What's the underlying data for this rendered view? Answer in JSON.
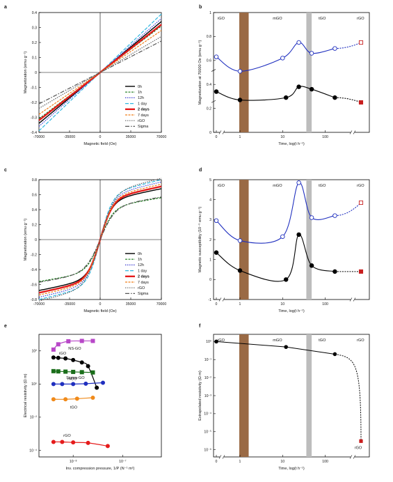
{
  "chart_data": [
    {
      "panel": "a",
      "type": "line",
      "xlabel": "Magnetic field (Oe)",
      "ylabel": "Magnetization (emu g⁻¹)",
      "xlim": [
        -70000,
        70000
      ],
      "ylim": [
        -0.4,
        0.4
      ],
      "xticks": [
        -70000,
        -35000,
        0,
        35000,
        70000
      ],
      "xtick_labels": [
        "-70000",
        "-35000",
        "0",
        "35000",
        "70000"
      ],
      "yticks": [
        -0.4,
        -0.3,
        -0.2,
        -0.1,
        0,
        0.1,
        0.2,
        0.3,
        0.4
      ],
      "ytick_labels": [
        "-0.4",
        "-0.3",
        "-0.2",
        "-0.1",
        "0",
        "0.1",
        "0.2",
        "0.3",
        "0.4"
      ],
      "legend_position": "bottom-right",
      "series": [
        {
          "name": "0h",
          "color": "#000000",
          "dash": "",
          "width": 1.4,
          "kind": "linear",
          "m": 0.34
        },
        {
          "name": "1h",
          "color": "#1a7a1a",
          "dash": "3,1.5",
          "width": 1.2,
          "kind": "linear",
          "m": 0.31
        },
        {
          "name": "12h",
          "color": "#3a3ad0",
          "dash": "1.5,1.5",
          "width": 1.2,
          "kind": "linear",
          "m": 0.36
        },
        {
          "name": "1 day",
          "color": "#2fb7e0",
          "dash": "5,2",
          "width": 1.2,
          "kind": "linear",
          "m": 0.39
        },
        {
          "name": "2 days",
          "color": "#e51b1b",
          "dash": "",
          "width": 2.4,
          "kind": "linear",
          "m": 0.32
        },
        {
          "name": "7 days",
          "color": "#f07f1a",
          "dash": "3,1.5",
          "width": 1.2,
          "kind": "linear",
          "m": 0.28
        },
        {
          "name": "rGO",
          "color": "#666666",
          "dash": "1.5,1.5",
          "width": 1.2,
          "kind": "linear",
          "m": 0.24
        },
        {
          "name": "Sigma",
          "color": "#555555",
          "dash": "6,2,1.5,2",
          "width": 1.2,
          "kind": "linear",
          "m": 0.21
        }
      ]
    },
    {
      "panel": "b",
      "type": "line",
      "xlabel": "Time, log(t h⁻¹)",
      "ylabel": "Magnetization at 70000 Oe (emu g⁻¹)",
      "ylim": [
        0,
        1
      ],
      "yticks": [
        0,
        0.2,
        0.4,
        0.6,
        0.8,
        1
      ],
      "ytick_labels": [
        "0",
        "0.2",
        "0.4",
        "0.6",
        "0.8",
        "1"
      ],
      "xtick_labels": [
        "0",
        "1",
        "10",
        "100"
      ],
      "region_labels": [
        "iGO",
        "mGO",
        "tGO",
        "rGO"
      ],
      "series": [
        {
          "name": "open",
          "color": "#1f2fbf",
          "points": [
            [
              0,
              0.63
            ],
            [
              1,
              0.51
            ],
            [
              10,
              0.62
            ],
            [
              24,
              0.75
            ],
            [
              48,
              0.66
            ],
            [
              168,
              0.7
            ],
            [
              2000,
              0.75
            ]
          ],
          "fill": "#ffffff"
        },
        {
          "name": "filled",
          "color": "#000000",
          "points": [
            [
              0,
              0.34
            ],
            [
              1,
              0.27
            ],
            [
              12,
              0.29
            ],
            [
              24,
              0.38
            ],
            [
              48,
              0.36
            ],
            [
              168,
              0.29
            ],
            [
              2000,
              0.25
            ]
          ],
          "fill": "#000000"
        }
      ]
    },
    {
      "panel": "c",
      "type": "line",
      "xlabel": "Magnetic field (Oe)",
      "ylabel": "Magnetization (emu g⁻¹)",
      "xlim": [
        -70000,
        70000
      ],
      "ylim": [
        -0.8,
        0.8
      ],
      "xticks": [
        -70000,
        -35000,
        0,
        35000,
        70000
      ],
      "xtick_labels": [
        "-70000",
        "-35000",
        "0",
        "35000",
        "70000"
      ],
      "yticks": [
        -0.8,
        -0.6,
        -0.4,
        -0.2,
        0,
        0.2,
        0.4,
        0.6,
        0.8
      ],
      "ytick_labels": [
        "-0.8",
        "-0.6",
        "-0.4",
        "-0.2",
        "0",
        "0.2",
        "0.4",
        "0.6",
        "0.8"
      ],
      "legend_position": "bottom-right",
      "series": [
        {
          "name": "0h",
          "color": "#000000",
          "dash": "",
          "width": 1.4,
          "kind": "sat",
          "Ms": 0.68,
          "H0": 14000
        },
        {
          "name": "1h",
          "color": "#1a7a1a",
          "dash": "3,1.5",
          "width": 1.2,
          "kind": "sat",
          "Ms": 0.56,
          "H0": 15000
        },
        {
          "name": "12h",
          "color": "#3a3ad0",
          "dash": "1.5,1.5",
          "width": 1.2,
          "kind": "sat",
          "Ms": 0.77,
          "H0": 15000
        },
        {
          "name": "1 day",
          "color": "#2fb7e0",
          "dash": "5,2",
          "width": 1.2,
          "kind": "sat",
          "Ms": 0.8,
          "H0": 14000
        },
        {
          "name": "2 days",
          "color": "#e51b1b",
          "dash": "",
          "width": 2.4,
          "kind": "sat",
          "Ms": 0.71,
          "H0": 14500
        },
        {
          "name": "7 days",
          "color": "#f07f1a",
          "dash": "3,1.5",
          "width": 1.2,
          "kind": "sat",
          "Ms": 0.74,
          "H0": 15000
        },
        {
          "name": "rGO",
          "color": "#666666",
          "dash": "1.5,1.5",
          "width": 1.2,
          "kind": "sat",
          "Ms": 0.82,
          "H0": 16000
        },
        {
          "name": "Sigma",
          "color": "#555555",
          "dash": "6,2,1.5,2",
          "width": 1.2,
          "kind": "sat",
          "Ms": 0.57,
          "H0": 17000
        }
      ]
    },
    {
      "panel": "d",
      "type": "line",
      "xlabel": "Time, log(t h⁻¹)",
      "ylabel": "Magnetic susceptibility (10⁻⁶ emu g⁻¹)",
      "ylim": [
        -1,
        5
      ],
      "yticks": [
        -1,
        0,
        1,
        2,
        3,
        4,
        5
      ],
      "ytick_labels": [
        "-1",
        "0",
        "1",
        "2",
        "3",
        "4",
        "5"
      ],
      "xtick_labels": [
        "0",
        "1",
        "10",
        "100"
      ],
      "region_labels": [
        "iGO",
        "mGO",
        "tGO",
        "rGO"
      ],
      "series": [
        {
          "name": "open",
          "color": "#1f2fbf",
          "points": [
            [
              0,
              2.95
            ],
            [
              1,
              1.95
            ],
            [
              10,
              2.15
            ],
            [
              24,
              4.85
            ],
            [
              48,
              3.1
            ],
            [
              168,
              3.2
            ],
            [
              2000,
              3.85
            ]
          ],
          "fill": "#ffffff"
        },
        {
          "name": "filled",
          "color": "#000000",
          "points": [
            [
              0,
              1.35
            ],
            [
              1,
              0.45
            ],
            [
              12,
              0.0
            ],
            [
              24,
              2.25
            ],
            [
              48,
              0.7
            ],
            [
              168,
              0.4
            ],
            [
              2000,
              0.4
            ]
          ],
          "fill": "#000000"
        }
      ]
    },
    {
      "panel": "e",
      "type": "line",
      "xlabel": "Inv. compression pressure, 1/P (N⁻¹ m²)",
      "ylabel": "Electrical resistivity (Ω m)",
      "yscale": "log",
      "ytick_labels": [
        "10⁻⁴",
        "10⁻²",
        "10⁰",
        "10²"
      ],
      "xtick_labels": [
        "10⁻⁸",
        "10⁻⁷"
      ],
      "series": [
        {
          "name": "NS-GO",
          "color": "#b848c8",
          "marker": "square",
          "points": [
            [
              0.4,
              120
            ],
            [
              0.5,
              250
            ],
            [
              0.8,
              380
            ],
            [
              1.5,
              400
            ],
            [
              2.5,
              400
            ]
          ]
        },
        {
          "name": "iGO",
          "color": "#000000",
          "marker": "circle",
          "points": [
            [
              0.4,
              40
            ],
            [
              0.5,
              38
            ],
            [
              0.7,
              35
            ],
            [
              1.0,
              28
            ],
            [
              1.5,
              20
            ],
            [
              2.0,
              12
            ],
            [
              3.0,
              0.6
            ]
          ]
        },
        {
          "name": "Sigma-GO",
          "color": "#1a6e1a",
          "marker": "square",
          "points": [
            [
              0.4,
              6
            ],
            [
              0.5,
              5.8
            ],
            [
              0.7,
              5.6
            ],
            [
              1.0,
              5.4
            ],
            [
              1.5,
              5.2
            ],
            [
              2.5,
              5.0
            ]
          ]
        },
        {
          "name": "mGO",
          "color": "#1f2fbf",
          "marker": "circle",
          "points": [
            [
              0.4,
              1.0
            ],
            [
              0.6,
              1.0
            ],
            [
              1.0,
              1.0
            ],
            [
              1.8,
              1.05
            ],
            [
              4.0,
              1.2
            ]
          ]
        },
        {
          "name": "tGO",
          "color": "#f08a1a",
          "marker": "circle",
          "points": [
            [
              0.4,
              0.12
            ],
            [
              0.7,
              0.12
            ],
            [
              1.2,
              0.13
            ],
            [
              2.5,
              0.15
            ]
          ]
        },
        {
          "name": "rGO",
          "color": "#e51b1b",
          "marker": "circle",
          "points": [
            [
              0.4,
              0.00032
            ],
            [
              0.6,
              0.00032
            ],
            [
              1.0,
              0.0003
            ],
            [
              2.0,
              0.00028
            ],
            [
              5.0,
              0.00018
            ]
          ]
        }
      ]
    },
    {
      "panel": "f",
      "type": "line",
      "xlabel": "Time, log(t h⁻¹)",
      "ylabel": "Extrapolated resistivity (Ω m)",
      "yscale": "log",
      "ytick_labels": [
        "10⁻⁶",
        "10⁻⁵",
        "10⁻⁴",
        "10⁻³",
        "10⁻²",
        "10⁻¹",
        "10⁰"
      ],
      "xtick_labels": [
        "0",
        "1",
        "10",
        "100"
      ],
      "region_labels": [
        "iGO",
        "mGO",
        "tGO",
        "rGO"
      ],
      "series": [
        {
          "name": "main",
          "color": "#000000",
          "points": [
            [
              0,
              1.0
            ],
            [
              12,
              0.5
            ],
            [
              168,
              0.2
            ]
          ]
        },
        {
          "name": "rGO",
          "color": "#e51b1b",
          "points": [
            [
              2000,
              3e-06
            ]
          ]
        }
      ]
    }
  ],
  "panel_letters": [
    "a",
    "b",
    "c",
    "d",
    "e",
    "f"
  ]
}
